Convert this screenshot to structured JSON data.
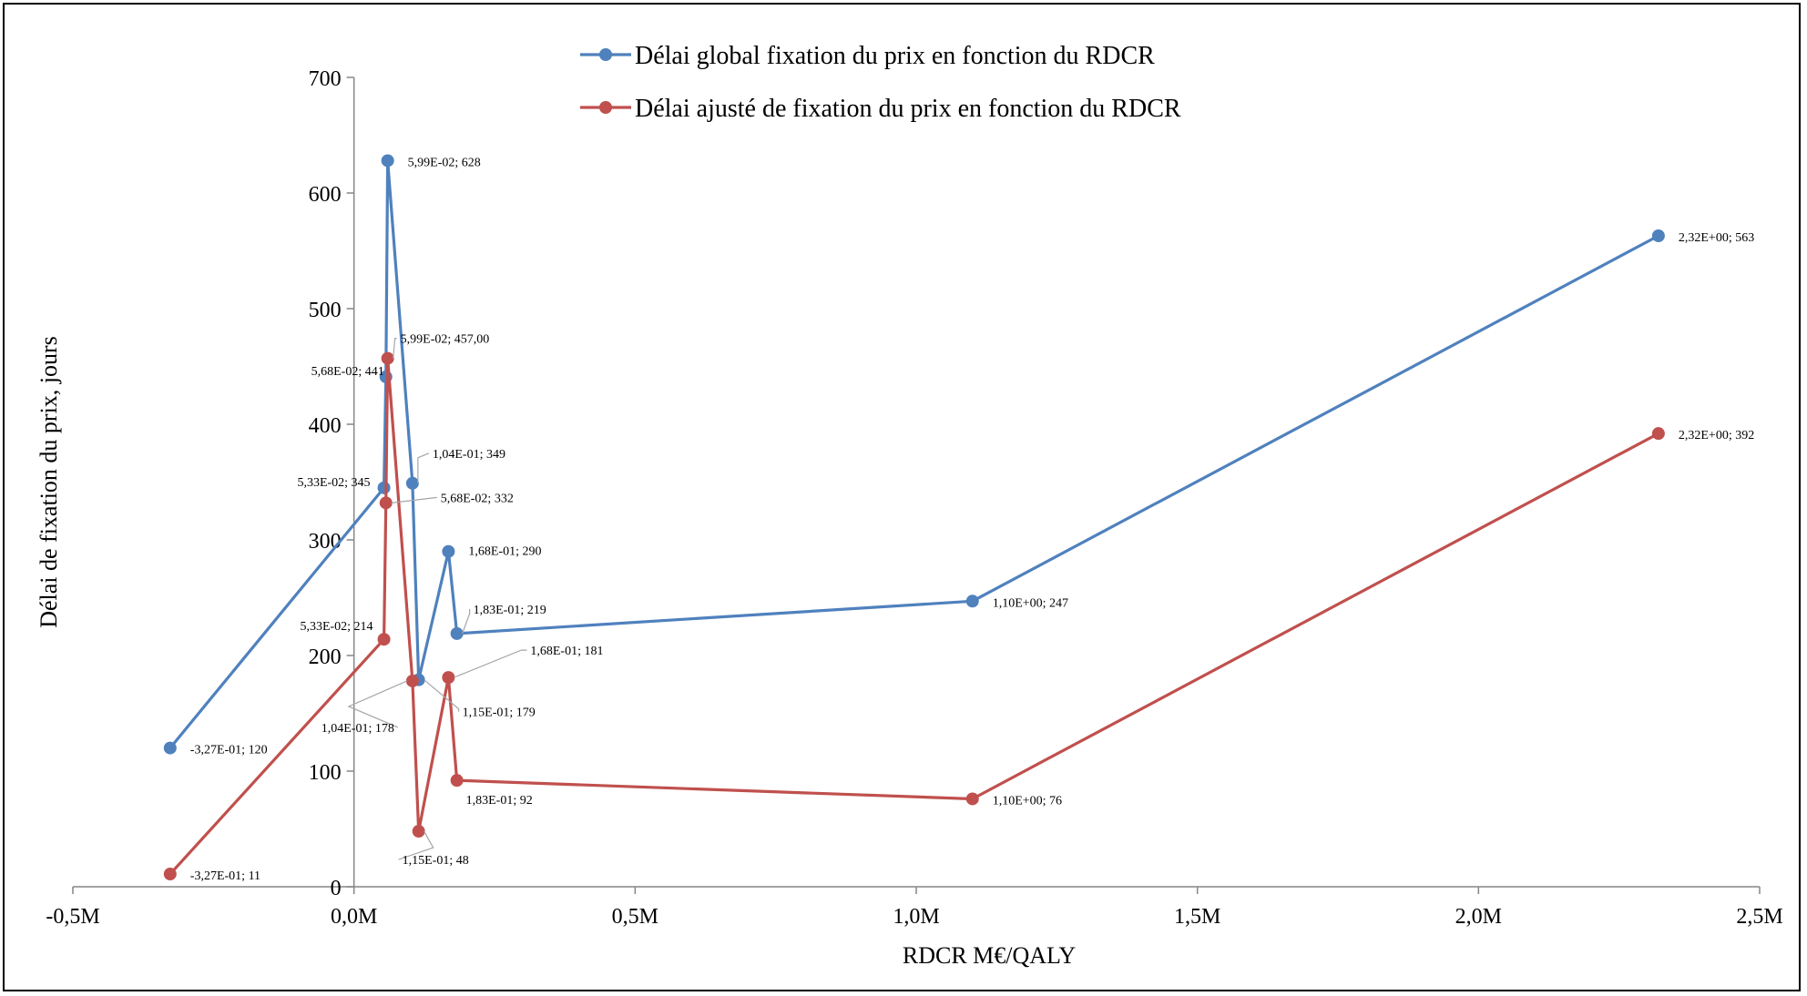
{
  "chart_data": {
    "type": "scatter",
    "title": "",
    "xlabel": "RDCR M€/QALY",
    "ylabel": "Délai de fixation du prix, jours",
    "xlim": [
      -0.5,
      2.5
    ],
    "ylim": [
      0,
      700
    ],
    "x_ticks": [
      {
        "value": -0.5,
        "label": "-0,5M"
      },
      {
        "value": 0.0,
        "label": "0,0M"
      },
      {
        "value": 0.5,
        "label": "0,5M"
      },
      {
        "value": 1.0,
        "label": "1,0M"
      },
      {
        "value": 1.5,
        "label": "1,5M"
      },
      {
        "value": 2.0,
        "label": "2,0M"
      },
      {
        "value": 2.5,
        "label": "2,5M"
      }
    ],
    "y_ticks": [
      {
        "value": 0,
        "label": "0"
      },
      {
        "value": 100,
        "label": "100"
      },
      {
        "value": 200,
        "label": "200"
      },
      {
        "value": 300,
        "label": "300"
      },
      {
        "value": 400,
        "label": "400"
      },
      {
        "value": 500,
        "label": "500"
      },
      {
        "value": 600,
        "label": "600"
      },
      {
        "value": 700,
        "label": "700"
      }
    ],
    "grid": false,
    "legend_position": "top-center",
    "series": [
      {
        "name": "Délai global fixation du prix en fonction du RDCR",
        "color": "#4f81bd",
        "points": [
          {
            "x": -0.327,
            "y": 120,
            "label": "-3,27E-01; 120"
          },
          {
            "x": 0.0533,
            "y": 345,
            "label": "5,33E-02; 345"
          },
          {
            "x": 0.0568,
            "y": 441,
            "label": "5,68E-02; 441"
          },
          {
            "x": 0.0599,
            "y": 628,
            "label": "5,99E-02; 628"
          },
          {
            "x": 0.104,
            "y": 349,
            "label": "1,04E-01; 349"
          },
          {
            "x": 0.115,
            "y": 179,
            "label": "1,15E-01; 179"
          },
          {
            "x": 0.168,
            "y": 290,
            "label": "1,68E-01; 290"
          },
          {
            "x": 0.183,
            "y": 219,
            "label": "1,83E-01; 219"
          },
          {
            "x": 1.1,
            "y": 247,
            "label": "1,10E+00; 247"
          },
          {
            "x": 2.32,
            "y": 563,
            "label": "2,32E+00; 563"
          }
        ]
      },
      {
        "name": "Délai ajusté de fixation du prix en fonction du RDCR",
        "color": "#c0504d",
        "points": [
          {
            "x": -0.327,
            "y": 11,
            "label": "-3,27E-01; 11"
          },
          {
            "x": 0.0533,
            "y": 214,
            "label": "5,33E-02; 214"
          },
          {
            "x": 0.0568,
            "y": 332,
            "label": "5,68E-02; 332"
          },
          {
            "x": 0.0599,
            "y": 457,
            "label": "5,99E-02; 457,00"
          },
          {
            "x": 0.104,
            "y": 178,
            "label": "1,04E-01; 178"
          },
          {
            "x": 0.115,
            "y": 48,
            "label": "1,15E-01; 48"
          },
          {
            "x": 0.168,
            "y": 181,
            "label": "1,68E-01; 181"
          },
          {
            "x": 0.183,
            "y": 92,
            "label": "1,83E-01; 92"
          },
          {
            "x": 1.1,
            "y": 76,
            "label": "1,10E+00; 76"
          },
          {
            "x": 2.32,
            "y": 392,
            "label": "2,32E+00; 392"
          }
        ]
      }
    ]
  }
}
